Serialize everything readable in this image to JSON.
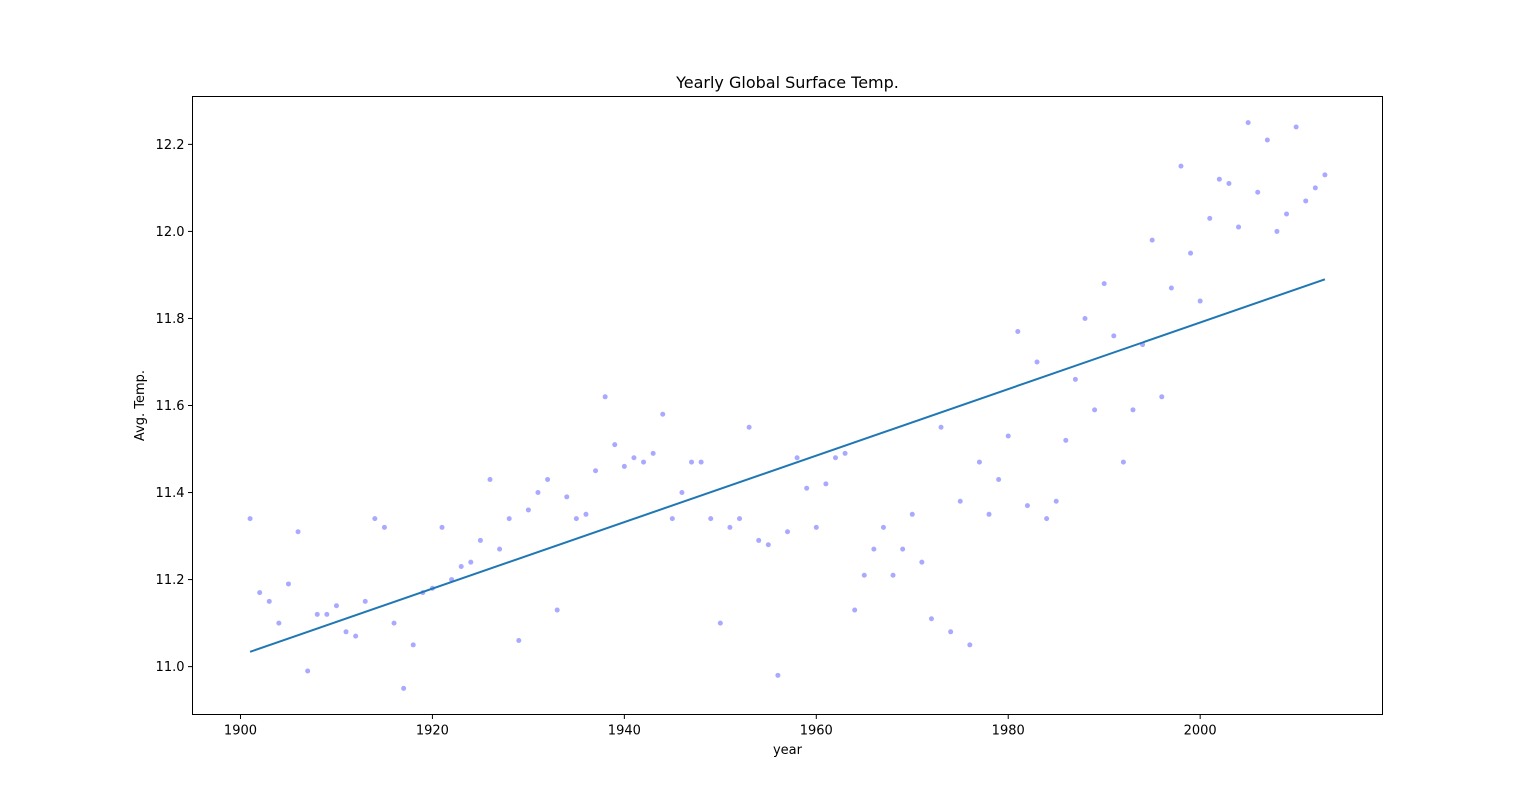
{
  "chart_data": {
    "type": "scatter",
    "title": "Yearly Global Surface Temp.",
    "xlabel": "year",
    "ylabel": "Avg. Temp.",
    "xlim": [
      1895,
      2019
    ],
    "ylim": [
      10.89,
      12.31
    ],
    "xticks": [
      1900,
      1920,
      1940,
      1960,
      1980,
      2000
    ],
    "xtick_labels": [
      "1900",
      "1920",
      "1940",
      "1960",
      "1980",
      "2000"
    ],
    "yticks": [
      11.0,
      11.2,
      11.4,
      11.6,
      11.8,
      12.0,
      12.2
    ],
    "ytick_labels": [
      "11.0",
      "11.2",
      "11.4",
      "11.6",
      "11.8",
      "12.0",
      "12.2"
    ],
    "grid": false,
    "series": [
      {
        "kind": "scatter",
        "color": "#6f6fff",
        "x": [
          1901,
          1902,
          1903,
          1904,
          1905,
          1906,
          1907,
          1908,
          1909,
          1910,
          1911,
          1912,
          1913,
          1914,
          1915,
          1916,
          1917,
          1918,
          1919,
          1920,
          1921,
          1922,
          1923,
          1924,
          1925,
          1926,
          1927,
          1928,
          1929,
          1930,
          1931,
          1932,
          1933,
          1934,
          1935,
          1936,
          1937,
          1938,
          1939,
          1940,
          1941,
          1942,
          1943,
          1944,
          1945,
          1946,
          1947,
          1948,
          1949,
          1950,
          1951,
          1952,
          1953,
          1954,
          1955,
          1956,
          1957,
          1958,
          1959,
          1960,
          1961,
          1962,
          1963,
          1964,
          1965,
          1966,
          1967,
          1968,
          1969,
          1970,
          1971,
          1972,
          1973,
          1974,
          1975,
          1976,
          1977,
          1978,
          1979,
          1980,
          1981,
          1982,
          1983,
          1984,
          1985,
          1986,
          1987,
          1988,
          1989,
          1990,
          1991,
          1992,
          1993,
          1994,
          1995,
          1996,
          1997,
          1998,
          1999,
          2000,
          2001,
          2002,
          2003,
          2004,
          2005,
          2006,
          2007,
          2008,
          2009,
          2010,
          2011,
          2012,
          2013
        ],
        "y": [
          11.34,
          11.17,
          11.15,
          11.1,
          11.19,
          11.31,
          10.99,
          11.12,
          11.12,
          11.14,
          11.08,
          11.07,
          11.15,
          11.34,
          11.32,
          11.1,
          10.95,
          11.05,
          11.17,
          11.18,
          11.32,
          11.2,
          11.23,
          11.24,
          11.29,
          11.43,
          11.27,
          11.34,
          11.06,
          11.36,
          11.4,
          11.43,
          11.13,
          11.39,
          11.34,
          11.35,
          11.45,
          11.62,
          11.51,
          11.46,
          11.48,
          11.47,
          11.49,
          11.58,
          11.34,
          11.4,
          11.47,
          11.47,
          11.34,
          11.1,
          11.32,
          11.34,
          11.55,
          11.29,
          11.28,
          10.98,
          11.31,
          11.48,
          11.41,
          11.32,
          11.42,
          11.48,
          11.49,
          11.13,
          11.21,
          11.27,
          11.32,
          11.21,
          11.27,
          11.35,
          11.24,
          11.11,
          11.55,
          11.08,
          11.38,
          11.05,
          11.47,
          11.35,
          11.43,
          11.53,
          11.77,
          11.37,
          11.7,
          11.34,
          11.38,
          11.52,
          11.66,
          11.8,
          11.59,
          11.88,
          11.76,
          11.47,
          11.59,
          11.74,
          11.98,
          11.62,
          11.87,
          12.15,
          11.95,
          11.84,
          12.03,
          12.12,
          12.11,
          12.01,
          12.25,
          12.09,
          12.21,
          12.0,
          12.04,
          12.24,
          12.07,
          12.1,
          12.13
        ]
      },
      {
        "kind": "line",
        "color": "#1f77b4",
        "x": [
          1901,
          2013
        ],
        "y": [
          11.034,
          11.89
        ]
      }
    ]
  }
}
